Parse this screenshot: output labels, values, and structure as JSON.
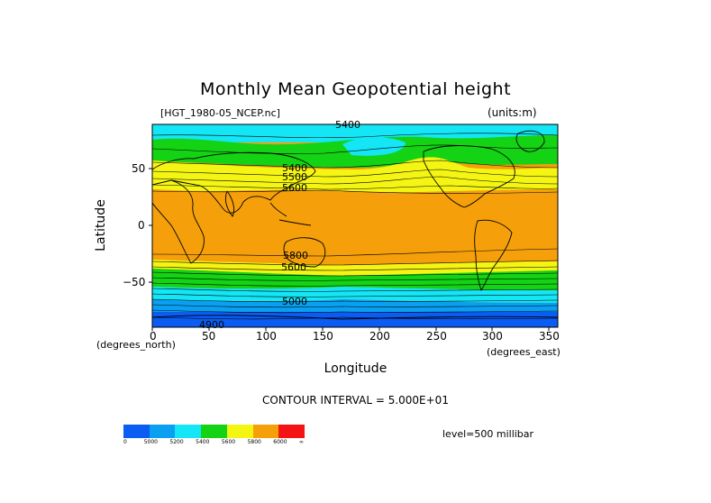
{
  "title": "Monthly Mean Geopotential height",
  "file_label": "[HGT_1980-05_NCEP.nc]",
  "units_label": "(units:m)",
  "y_axis_label": "Latitude",
  "x_axis_label": "Longitude",
  "x_unit_label": "(degrees_north)",
  "x_unit_label_right": "(degrees_east)",
  "contour_interval": "CONTOUR INTERVAL = 5.000E+01",
  "level_label": "level=500 millibar",
  "x_ticks": [
    "0",
    "50",
    "100",
    "150",
    "200",
    "250",
    "300",
    "350"
  ],
  "y_ticks": [
    "50",
    "0",
    "−50"
  ],
  "contour_labels": [
    "5400",
    "4900",
    "5800",
    "5400",
    "5500",
    "5600",
    "5000",
    "5600"
  ],
  "legend": {
    "colors": [
      "#0a5cf2",
      "#0aa0f2",
      "#14e6f5",
      "#14d214",
      "#f5f514",
      "#f5a00a",
      "#f51414"
    ],
    "labels": [
      "0",
      "5000",
      "5200",
      "5400",
      "5600",
      "5800",
      "6000",
      "∞"
    ]
  },
  "chart_data": {
    "type": "heatmap",
    "variable": "Monthly Mean Geopotential height",
    "units": "m",
    "level": "500 millibar",
    "xlabel": "Longitude",
    "ylabel": "Latitude",
    "xlim": [
      0,
      357.5
    ],
    "ylim": [
      -90,
      90
    ],
    "color_levels": [
      5000,
      5200,
      5400,
      5600,
      5800,
      6000
    ],
    "contour_interval": 50
  }
}
